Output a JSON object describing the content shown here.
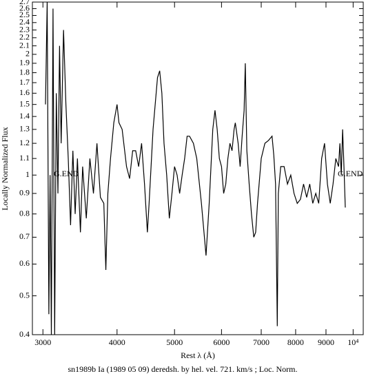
{
  "chart_data": {
    "type": "line",
    "title": "sn1989b Ia (1989 05 09) deredsh. by hel. vel.   721. km/s ;  Loc. Norm.",
    "x_label": "Rest λ (Å)",
    "y_label": "Locally Normalized Flux",
    "annotations": [
      "G.END",
      "G.END"
    ],
    "xscale": "log",
    "yscale": "log",
    "xlim": [
      2880,
      10400
    ],
    "ylim": [
      0.4,
      2.7
    ],
    "xticks": [
      3000,
      4000,
      5000,
      6000,
      7000,
      8000,
      9000,
      {
        "value": 10000,
        "label": "10⁴"
      }
    ],
    "yticks": [
      0.4,
      0.5,
      0.6,
      0.7,
      0.8,
      0.9,
      1,
      1.1,
      1.2,
      1.3,
      1.4,
      1.5,
      1.6,
      1.7,
      1.8,
      1.9,
      2,
      2.1,
      2.2,
      2.3,
      2.4,
      2.5,
      2.6,
      2.7
    ],
    "x": [
      3030,
      3050,
      3070,
      3085,
      3100,
      3120,
      3140,
      3160,
      3180,
      3200,
      3220,
      3250,
      3280,
      3310,
      3340,
      3370,
      3400,
      3430,
      3470,
      3500,
      3550,
      3600,
      3650,
      3700,
      3750,
      3800,
      3830,
      3860,
      3900,
      3950,
      4000,
      4030,
      4080,
      4150,
      4200,
      4250,
      4300,
      4350,
      4400,
      4450,
      4500,
      4530,
      4600,
      4680,
      4720,
      4760,
      4800,
      4850,
      4900,
      4950,
      5000,
      5050,
      5100,
      5150,
      5200,
      5250,
      5300,
      5380,
      5450,
      5550,
      5650,
      5720,
      5800,
      5850,
      5900,
      5950,
      6000,
      6050,
      6100,
      6150,
      6200,
      6250,
      6300,
      6330,
      6400,
      6450,
      6500,
      6550,
      6580,
      6620,
      6680,
      6740,
      6800,
      6850,
      6900,
      7000,
      7100,
      7200,
      7300,
      7350,
      7400,
      7450,
      7480,
      7550,
      7650,
      7750,
      7850,
      7950,
      8050,
      8150,
      8250,
      8350,
      8450,
      8550,
      8650,
      8750,
      8850,
      8950,
      9050,
      9150,
      9250,
      9350,
      9450,
      9500,
      9550,
      9600,
      9650,
      9700
    ],
    "series": [
      {
        "color": "#000000",
        "values": [
          1.5,
          2.7,
          0.45,
          1.0,
          0.4,
          2.6,
          0.4,
          1.6,
          0.9,
          2.1,
          1.2,
          2.3,
          1.5,
          1.1,
          0.75,
          1.15,
          0.8,
          1.1,
          0.72,
          1.05,
          0.78,
          1.1,
          0.9,
          1.2,
          0.88,
          0.85,
          0.58,
          0.9,
          1.1,
          1.35,
          1.5,
          1.35,
          1.3,
          1.05,
          0.98,
          1.15,
          1.15,
          1.05,
          1.2,
          0.95,
          0.72,
          0.85,
          1.3,
          1.75,
          1.82,
          1.6,
          1.2,
          1.0,
          0.78,
          0.9,
          1.05,
          1.0,
          0.9,
          1.0,
          1.1,
          1.25,
          1.25,
          1.2,
          1.1,
          0.85,
          0.63,
          0.85,
          1.3,
          1.45,
          1.3,
          1.1,
          1.05,
          0.9,
          0.95,
          1.1,
          1.2,
          1.15,
          1.3,
          1.35,
          1.2,
          1.05,
          1.25,
          1.45,
          1.9,
          1.15,
          0.95,
          0.8,
          0.7,
          0.72,
          0.85,
          1.1,
          1.2,
          1.22,
          1.25,
          1.12,
          0.95,
          0.42,
          0.9,
          1.05,
          1.05,
          0.95,
          1.0,
          0.9,
          0.85,
          0.87,
          0.95,
          0.88,
          0.95,
          0.85,
          0.9,
          0.85,
          1.1,
          1.2,
          0.95,
          0.85,
          0.95,
          1.1,
          1.05,
          1.2,
          1.0,
          1.3,
          1.05,
          0.83
        ]
      }
    ]
  }
}
